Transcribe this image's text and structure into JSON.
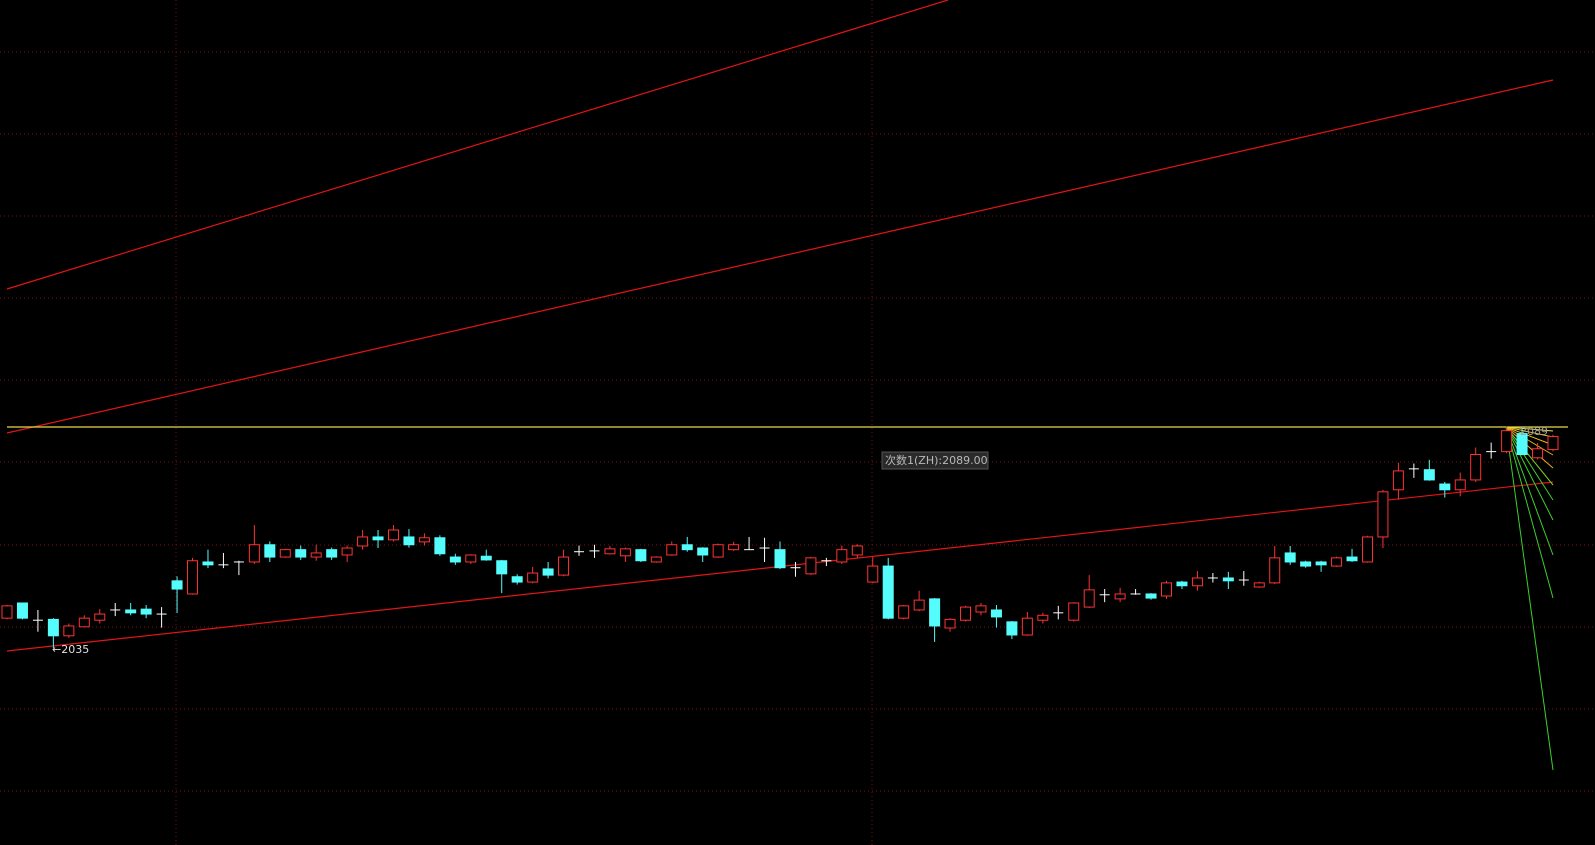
{
  "chart_data": {
    "type": "candlestick",
    "up_color": "#ff3232",
    "down_color": "#54fcfc",
    "flat_color": "#ffffff",
    "ylim": [
      1987,
      2193
    ],
    "open": [
      2042.3,
      2046,
      2041.8,
      2042,
      2038,
      2040.2,
      2041.8,
      2044.3,
      2044.3,
      2044.5,
      2043.3,
      2051.4,
      2048.2,
      2056,
      2055.3,
      2056,
      2056,
      2060.2,
      2057.2,
      2059,
      2057.2,
      2059,
      2057.7,
      2059.9,
      2062.1,
      2061.4,
      2062.1,
      2060.9,
      2061.9,
      2057.2,
      2056,
      2057.4,
      2056.3,
      2052.4,
      2051.1,
      2054.3,
      2052.8,
      2058.5,
      2058.7,
      2058,
      2057.5,
      2059,
      2056,
      2057.7,
      2060.2,
      2059.4,
      2057.2,
      2059,
      2059,
      2059.4,
      2059,
      2054.6,
      2053.1,
      2056.3,
      2056,
      2057.7,
      2051.1,
      2055,
      2042.3,
      2044.3,
      2047,
      2039.9,
      2041.8,
      2043.8,
      2044.3,
      2041.4,
      2038.2,
      2041.8,
      2043.6,
      2041.8,
      2045,
      2048,
      2047,
      2048.2,
      2048.2,
      2047.7,
      2051.1,
      2050.2,
      2052.1,
      2052.1,
      2051.6,
      2049.9,
      2050.9,
      2058.2,
      2056,
      2056,
      2055,
      2057.2,
      2056,
      2062.1,
      2073.6,
      2078.7,
      2078.5,
      2075,
      2073.6,
      2076,
      2082.9,
      2082.9,
      2087.3,
      2081.4,
      2083.4
    ],
    "high": [
      2045.5,
      2046,
      2044.3,
      2042.3,
      2041,
      2043,
      2044.5,
      2046,
      2046,
      2045.5,
      2045,
      2052.5,
      2057,
      2059,
      2058.2,
      2056.3,
      2065,
      2061,
      2059.2,
      2060,
      2060.2,
      2059.5,
      2060,
      2063.8,
      2063.8,
      2065,
      2064,
      2063,
      2062.5,
      2058,
      2057.9,
      2059,
      2056.5,
      2053,
      2054.8,
      2056,
      2059,
      2060,
      2060.2,
      2059.9,
      2059.5,
      2059.2,
      2057.4,
      2061,
      2062.1,
      2059.6,
      2060.5,
      2060.9,
      2062.1,
      2061.9,
      2061,
      2056,
      2057.3,
      2057,
      2060,
      2060.3,
      2057.2,
      2057,
      2045.5,
      2049,
      2047.2,
      2042.3,
      2045.3,
      2046,
      2045.5,
      2041.6,
      2043.8,
      2043.6,
      2045.3,
      2046.2,
      2052.8,
      2049.4,
      2049.7,
      2049.4,
      2048.4,
      2051.4,
      2051.4,
      2053.8,
      2053.3,
      2053.6,
      2053.8,
      2051.2,
      2059.9,
      2059.9,
      2056.3,
      2056.3,
      2057.3,
      2059.2,
      2062.4,
      2073.6,
      2080.2,
      2080,
      2080.9,
      2075.5,
      2077.8,
      2083.9,
      2085.1,
      2089,
      2088.5,
      2085,
      2087
    ],
    "low": [
      2042,
      2042,
      2039,
      2035,
      2037.5,
      2040,
      2041,
      2042.8,
      2043,
      2042.3,
      2040,
      2043.6,
      2048,
      2054.5,
      2054.5,
      2052.8,
      2055.5,
      2056,
      2057,
      2056.5,
      2056.3,
      2056.5,
      2056,
      2059,
      2059.4,
      2061,
      2059.5,
      2060,
      2057.5,
      2055.3,
      2055.5,
      2056.3,
      2048.4,
      2050.5,
      2050.8,
      2052,
      2052.5,
      2057.5,
      2057,
      2057.8,
      2056,
      2056,
      2055.8,
      2057.5,
      2058.5,
      2056,
      2057,
      2058.7,
      2059,
      2056,
      2054.3,
      2052.4,
      2052.8,
      2055,
      2055.5,
      2057,
      2050.8,
      2042,
      2042,
      2044,
      2036.5,
      2039,
      2041.5,
      2043,
      2040,
      2037.2,
      2038,
      2041,
      2042,
      2041.5,
      2044.8,
      2046.2,
      2046.2,
      2048,
      2046.8,
      2047,
      2049.4,
      2049,
      2051,
      2049.4,
      2050.2,
      2049.7,
      2050.6,
      2055.3,
      2054.6,
      2053.6,
      2054.8,
      2056,
      2055.8,
      2059.4,
      2071.2,
      2076.5,
      2075.8,
      2071.7,
      2072,
      2075.5,
      2081.2,
      2082.5,
      2082,
      2081,
      2083
    ],
    "close": [
      2045.3,
      2042.3,
      2041.8,
      2038,
      2040.4,
      2042.3,
      2043.3,
      2044.3,
      2043.6,
      2043.3,
      2043.3,
      2049.4,
      2056.3,
      2055.3,
      2055.3,
      2056,
      2060.2,
      2057.2,
      2059,
      2057.2,
      2058.2,
      2057.2,
      2059.4,
      2062.1,
      2061.4,
      2063.8,
      2060.2,
      2061.9,
      2058,
      2056,
      2057.7,
      2056.5,
      2053.1,
      2051.1,
      2053.3,
      2052.8,
      2057.2,
      2058.5,
      2058.7,
      2059.2,
      2059.2,
      2056.3,
      2057.2,
      2060.2,
      2059,
      2057.7,
      2060.2,
      2060.2,
      2059,
      2059.4,
      2054.6,
      2054.6,
      2057,
      2056.3,
      2059,
      2059.9,
      2055,
      2042.3,
      2045.3,
      2046.7,
      2040.4,
      2042,
      2045,
      2045.3,
      2042.6,
      2038.2,
      2042.3,
      2043,
      2043.6,
      2046,
      2049.2,
      2048,
      2048.2,
      2048.2,
      2047.2,
      2050.9,
      2050.2,
      2052.1,
      2052.1,
      2051.4,
      2051.6,
      2050.9,
      2057,
      2056,
      2055,
      2055.3,
      2057,
      2056.3,
      2062.1,
      2073.1,
      2078.2,
      2078.7,
      2076,
      2073.6,
      2076,
      2082.2,
      2082.9,
      2088,
      2082.2,
      2083.6,
      2086.6
    ],
    "annotations": [
      "←2035",
      "次数1(ZH):2089.00",
      "2089"
    ]
  }
}
